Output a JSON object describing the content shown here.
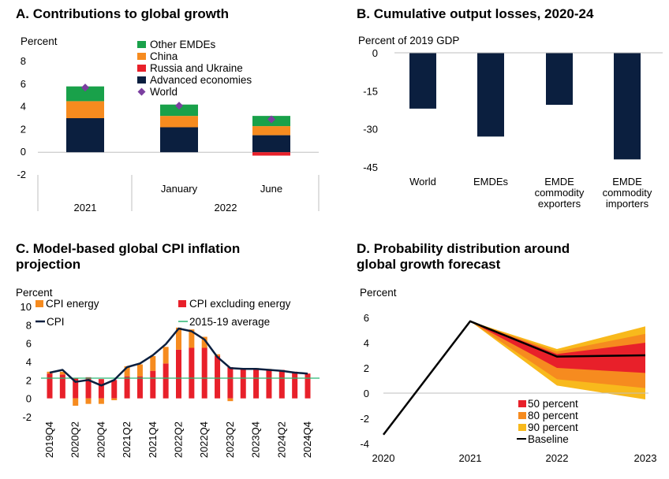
{
  "colors": {
    "navy": "#0b1f3f",
    "orange": "#f68b1f",
    "red": "#e8202a",
    "green": "#19a14a",
    "purple": "#7b3fa0",
    "yellow": "#f8b91c",
    "band_red": "#e8202a",
    "band_orange": "#f68b1f",
    "band_yellow": "#f8b91c",
    "green_line": "#2bb673",
    "axis": "#bfbfbf"
  },
  "chart_data": [
    {
      "id": "A",
      "type": "bar",
      "title": "A. Contributions to global growth",
      "ylabel": "Percent",
      "ylim": [
        -2,
        8
      ],
      "yticks": [
        -2,
        0,
        2,
        4,
        6,
        8
      ],
      "categories": [
        "2021",
        "January",
        "June"
      ],
      "group_labels": [
        "2021",
        "2022"
      ],
      "stacked": true,
      "legend": [
        "Other EMDEs",
        "China",
        "Russia and Ukraine",
        "Advanced economies",
        "World"
      ],
      "series": [
        {
          "name": "Advanced economies",
          "color_key": "navy",
          "values": [
            3.0,
            2.2,
            1.5
          ]
        },
        {
          "name": "Russia and Ukraine",
          "color_key": "red",
          "values": [
            0.0,
            0.0,
            -0.3
          ]
        },
        {
          "name": "China",
          "color_key": "orange",
          "values": [
            1.5,
            1.0,
            0.8
          ]
        },
        {
          "name": "Other EMDEs",
          "color_key": "green",
          "values": [
            1.3,
            1.0,
            0.9
          ]
        }
      ],
      "world": [
        5.7,
        4.1,
        2.9
      ]
    },
    {
      "id": "B",
      "type": "bar",
      "title": "B. Cumulative output losses, 2020-24",
      "ylabel": "Percent of 2019 GDP",
      "ylim": [
        -45,
        0
      ],
      "yticks": [
        0,
        -15,
        -30,
        -45
      ],
      "categories": [
        "World",
        "EMDEs",
        "EMDE commodity exporters",
        "EMDE commodity importers"
      ],
      "category_lines": [
        [
          "World"
        ],
        [
          "EMDEs"
        ],
        [
          "EMDE",
          "commodity",
          "exporters"
        ],
        [
          "EMDE",
          "commodity",
          "importers"
        ]
      ],
      "values": [
        -22,
        -33,
        -20.5,
        -42
      ]
    },
    {
      "id": "C",
      "type": "bar",
      "title": "C. Model-based global CPI inflation projection",
      "title_lines": [
        "C. Model-based global CPI inflation",
        "projection"
      ],
      "ylabel": "Percent",
      "ylim": [
        -2,
        10
      ],
      "yticks": [
        -2,
        0,
        2,
        4,
        6,
        8,
        10
      ],
      "categories": [
        "2019Q4",
        "2020Q1",
        "2020Q2",
        "2020Q3",
        "2020Q4",
        "2021Q1",
        "2021Q2",
        "2021Q3",
        "2021Q4",
        "2022Q1",
        "2022Q2",
        "2022Q3",
        "2022Q4",
        "2023Q1",
        "2023Q2",
        "2023Q3",
        "2023Q4",
        "2024Q1",
        "2024Q2",
        "2024Q3",
        "2024Q4"
      ],
      "tick_labels": [
        "2019Q4",
        "2020Q2",
        "2020Q4",
        "2021Q2",
        "2021Q4",
        "2022Q2",
        "2022Q4",
        "2023Q2",
        "2023Q4",
        "2024Q2",
        "2024Q4"
      ],
      "legend": [
        "CPI energy",
        "CPI excluding energy",
        "CPI",
        "2015-19 average"
      ],
      "series": [
        {
          "name": "CPI excluding energy",
          "color_key": "red",
          "values": [
            2.7,
            2.6,
            2.2,
            2.3,
            2.1,
            2.0,
            2.4,
            2.4,
            3.0,
            3.8,
            5.3,
            5.5,
            5.5,
            4.6,
            3.4,
            3.2,
            3.2,
            3.1,
            3.1,
            2.9,
            2.7
          ]
        },
        {
          "name": "CPI energy",
          "color_key": "orange",
          "values": [
            0.2,
            0.3,
            -0.8,
            -0.6,
            -0.6,
            -0.2,
            1.1,
            1.3,
            1.6,
            1.8,
            2.4,
            2.0,
            1.2,
            0.2,
            -0.3,
            0.1,
            0.1,
            0.1,
            0.0,
            0.0,
            0.0
          ]
        }
      ],
      "cpi": [
        2.8,
        3.1,
        1.8,
        2.0,
        1.4,
        2.0,
        3.4,
        3.8,
        4.7,
        5.9,
        7.6,
        7.3,
        6.4,
        4.5,
        3.3,
        3.2,
        3.2,
        3.1,
        3.0,
        2.8,
        2.7
      ],
      "average": 2.2
    },
    {
      "id": "D",
      "type": "area",
      "title": "D. Probability distribution around global growth forecast",
      "title_lines": [
        "D. Probability distribution around",
        "global growth forecast"
      ],
      "ylabel": "Percent",
      "ylim": [
        -4,
        6
      ],
      "yticks": [
        -4,
        -2,
        0,
        2,
        4,
        6
      ],
      "x": [
        "2020",
        "2021",
        "2022",
        "2023"
      ],
      "legend": [
        "50 percent",
        "80 percent",
        "90 percent",
        "Baseline"
      ],
      "baseline": [
        -3.3,
        5.7,
        2.9,
        3.0
      ],
      "bands": [
        {
          "name": "90 percent",
          "color_key": "band_yellow",
          "lower": [
            -3.3,
            5.7,
            0.6,
            -0.5
          ],
          "upper": [
            -3.3,
            5.7,
            3.5,
            5.3
          ]
        },
        {
          "name": "80 percent",
          "color_key": "band_orange",
          "lower": [
            -3.3,
            5.7,
            1.1,
            0.4
          ],
          "upper": [
            -3.3,
            5.7,
            3.3,
            4.7
          ]
        },
        {
          "name": "50 percent",
          "color_key": "band_red",
          "lower": [
            -3.3,
            5.7,
            2.0,
            1.6
          ],
          "upper": [
            -3.3,
            5.7,
            3.1,
            4.0
          ]
        }
      ]
    }
  ]
}
